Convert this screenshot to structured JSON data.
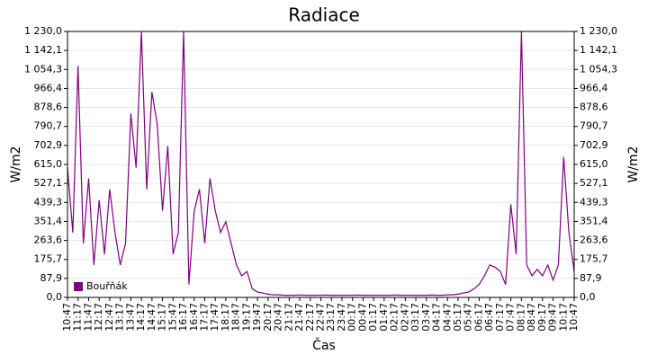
{
  "chart_data": {
    "type": "line",
    "title": "Radiace",
    "ylabel": "W/m2",
    "xlabel": "Čas",
    "categories": [
      "10:47",
      null,
      "11:17",
      null,
      "11:47",
      null,
      "12:17",
      null,
      "12:47",
      null,
      "13:17",
      null,
      "13:47",
      null,
      "14:17",
      null,
      "14:47",
      null,
      "15:17",
      null,
      "15:47",
      null,
      "16:17",
      null,
      "16:47",
      null,
      "17:17",
      null,
      "17:47",
      null,
      "18:17",
      null,
      "18:47",
      null,
      "19:17",
      null,
      "19:47",
      null,
      "20:17",
      null,
      "20:47",
      null,
      "21:17",
      null,
      "21:47",
      null,
      "22:17",
      null,
      "22:47",
      null,
      "23:17",
      null,
      "23:47",
      null,
      "00:17",
      null,
      "00:47",
      null,
      "01:17",
      null,
      "01:47",
      null,
      "02:17",
      null,
      "02:47",
      null,
      "03:17",
      null,
      "03:47",
      null,
      "04:17",
      null,
      "04:47",
      null,
      "05:17",
      null,
      "05:47",
      null,
      "06:17",
      null,
      "06:47",
      null,
      "07:17",
      null,
      "07:47",
      null,
      "08:17",
      null,
      "08:47",
      null,
      "09:17",
      null,
      "09:47",
      null,
      "10:17",
      null,
      "10:47"
    ],
    "series": [
      {
        "name": "Bouřňák",
        "color": "#800080",
        "values": [
          600,
          300,
          1070,
          250,
          550,
          150,
          450,
          200,
          500,
          300,
          150,
          250,
          850,
          600,
          1230,
          500,
          950,
          800,
          400,
          700,
          200,
          300,
          1230,
          60,
          400,
          500,
          250,
          550,
          400,
          300,
          350,
          250,
          150,
          100,
          120,
          40,
          25,
          20,
          15,
          12,
          12,
          10,
          10,
          10,
          11,
          10,
          10,
          10,
          10,
          11,
          10,
          10,
          10,
          10,
          10,
          11,
          10,
          10,
          10,
          10,
          10,
          10,
          11,
          10,
          10,
          10,
          10,
          10,
          10,
          11,
          10,
          10,
          12,
          12,
          15,
          20,
          25,
          40,
          60,
          100,
          150,
          140,
          120,
          60,
          430,
          200,
          1230,
          150,
          100,
          130,
          100,
          150,
          80,
          150,
          650,
          300,
          120
        ]
      }
    ],
    "ylim": [
      0,
      1230
    ],
    "yticks": [
      {
        "value": 0,
        "label": "0,0"
      },
      {
        "value": 87.9,
        "label": "87,9"
      },
      {
        "value": 175.7,
        "label": "175,7"
      },
      {
        "value": 263.6,
        "label": "263,6"
      },
      {
        "value": 351.4,
        "label": "351,4"
      },
      {
        "value": 439.3,
        "label": "439,3"
      },
      {
        "value": 527.1,
        "label": "527,1"
      },
      {
        "value": 615.0,
        "label": "615,0"
      },
      {
        "value": 702.9,
        "label": "702,9"
      },
      {
        "value": 790.7,
        "label": "790,7"
      },
      {
        "value": 878.6,
        "label": "878,6"
      },
      {
        "value": 966.4,
        "label": "966,4"
      },
      {
        "value": 1054.3,
        "label": "1 054,3"
      },
      {
        "value": 1142.1,
        "label": "1 142,1"
      },
      {
        "value": 1230.0,
        "label": "1 230,0"
      }
    ],
    "grid": true,
    "legend": "lower left"
  }
}
